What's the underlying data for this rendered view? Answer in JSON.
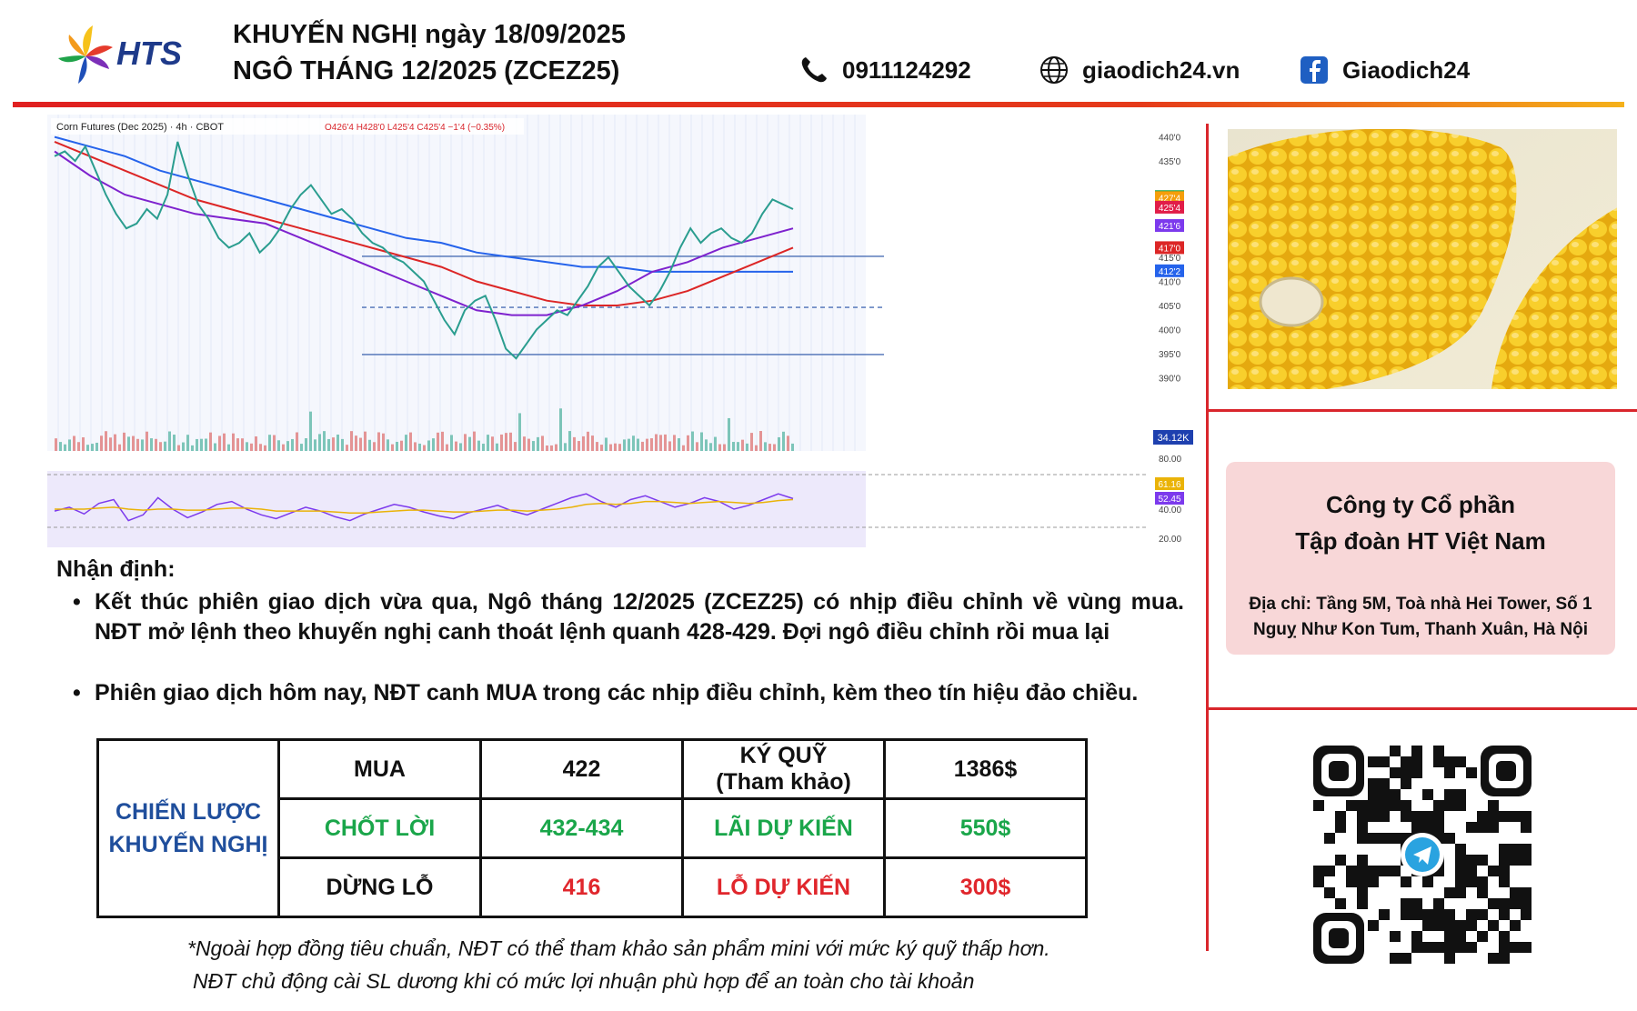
{
  "header": {
    "logo_text": "HTS",
    "title_line1": "KHUYẾN NGHỊ ngày 18/09/2025",
    "title_line2": "NGÔ THÁNG 12/2025 (ZCEZ25)",
    "phone": "0911124292",
    "website": "giaodich24.vn",
    "facebook": "Giaodich24",
    "icons": [
      "phone-icon",
      "globe-icon",
      "facebook-icon"
    ]
  },
  "chart_data": {
    "type": "line",
    "title": "Corn Futures (Dec 2025) · 4h · CBOT",
    "ohlc_label": "O426'4 H428'0 L425'4 C425'4 −1'4 (−0.35%)",
    "y_ticks": [
      "440'0",
      "435'0",
      "415'0",
      "410'0",
      "405'0",
      "400'0",
      "395'0",
      "390'0"
    ],
    "price_labels": [
      {
        "text": "427'6",
        "color": "#16a34a"
      },
      {
        "text": "427'4",
        "color": "#f59e0b"
      },
      {
        "text": "425'4",
        "color": "#e11d48"
      },
      {
        "text": "421'6",
        "color": "#7c3aed"
      },
      {
        "text": "417'0",
        "color": "#dc2626"
      },
      {
        "text": "412'2",
        "color": "#2563eb"
      }
    ],
    "volume_label": "34.12K",
    "rsi_ticks": [
      "80.00",
      "40.00",
      "20.00"
    ],
    "rsi_labels": [
      {
        "text": "61.16",
        "color": "#eab308"
      },
      {
        "text": "52.45",
        "color": "#7c3aed"
      }
    ],
    "ylim": [
      388,
      442
    ],
    "close_series": [
      436,
      437,
      435,
      438,
      433,
      428,
      424,
      421,
      422,
      425,
      423,
      428,
      439,
      432,
      426,
      423,
      419,
      417,
      418,
      420,
      416,
      418,
      421,
      425,
      428,
      430,
      427,
      424,
      425,
      423,
      420,
      418,
      417,
      415,
      414,
      412,
      410,
      406,
      402,
      399,
      404,
      406,
      407,
      402,
      396,
      394,
      397,
      400,
      402,
      404,
      403,
      406,
      409,
      413,
      415,
      412,
      409,
      407,
      405,
      408,
      412,
      417,
      421,
      418,
      420,
      421,
      419,
      418,
      420,
      424,
      427,
      426,
      425
    ],
    "ma_series": [
      {
        "color": "#2563eb",
        "values": [
          440,
          438,
          436,
          433,
          431,
          429,
          427,
          425,
          423,
          421,
          419,
          418,
          416,
          415,
          414,
          413,
          413,
          412,
          412,
          412,
          412,
          412
        ]
      },
      {
        "color": "#dc2626",
        "values": [
          439,
          436,
          433,
          430,
          427,
          425,
          423,
          421,
          419,
          417,
          415,
          413,
          410,
          408,
          406,
          405,
          405,
          406,
          408,
          411,
          414,
          417
        ]
      },
      {
        "color": "#7e22ce",
        "values": [
          437,
          432,
          428,
          426,
          424,
          423,
          422,
          419,
          416,
          413,
          410,
          407,
          404,
          403,
          403,
          405,
          408,
          412,
          414,
          417,
          419,
          421
        ]
      }
    ],
    "hlines": [
      {
        "value": 415.2,
        "style": "solid"
      },
      {
        "value": 404.6,
        "style": "dashed"
      },
      {
        "value": 394.8,
        "style": "solid"
      }
    ],
    "rsi_values": [
      48,
      52,
      45,
      56,
      60,
      38,
      44,
      62,
      50,
      41,
      47,
      55,
      58,
      50,
      44,
      40,
      46,
      52,
      48,
      42,
      38,
      45,
      50,
      55,
      52,
      47,
      43,
      40,
      46,
      50,
      54,
      48,
      44,
      50,
      56,
      62,
      66,
      58,
      52,
      60,
      64,
      58,
      52,
      56,
      62,
      58,
      50,
      54,
      60,
      66,
      61
    ],
    "rsi_avg": [
      50,
      50,
      50,
      51,
      52,
      50,
      49,
      50,
      50,
      49,
      49,
      50,
      51,
      51,
      50,
      48,
      48,
      48,
      48,
      47,
      46,
      46,
      47,
      48,
      49,
      49,
      48,
      47,
      47,
      48,
      49,
      49,
      48,
      49,
      50,
      52,
      55,
      56,
      55,
      56,
      58,
      58,
      57,
      56,
      57,
      58,
      57,
      56,
      57,
      59,
      60
    ]
  },
  "right": {
    "company_line1": "Công ty Cổ phần",
    "company_line2": "Tập đoàn HT Việt Nam",
    "address_line1": "Địa chỉ: Tầng 5M, Toà nhà Hei Tower, Số 1",
    "address_line2": "Nguỵ Như Kon Tum, Thanh Xuân, Hà Nội"
  },
  "analysis": {
    "heading": "Nhận định:",
    "bullets": [
      "Kết thúc phiên giao dịch vừa qua, Ngô tháng 12/2025 (ZCEZ25) có nhịp điều chỉnh về vùng mua. NĐT mở lệnh theo khuyến nghị canh thoát lệnh quanh 428-429. Đợi ngô điều chỉnh rồi mua lại",
      "Phiên giao dịch hôm nay, NĐT canh MUA trong các nhịp điều chỉnh, kèm theo tín hiệu đảo chiều."
    ]
  },
  "table": {
    "strategy_line1": "CHIẾN LƯỢC",
    "strategy_line2": "KHUYẾN NGHỊ",
    "row1": {
      "c1": "MUA",
      "c2": "422",
      "c3_line1": "KÝ QUỸ",
      "c3_line2": "(Tham khảo)",
      "c4": "1386$"
    },
    "row2": {
      "c1": "CHỐT LỜI",
      "c2": "432-434",
      "c3": "LÃI DỰ KIẾN",
      "c4": "550$"
    },
    "row3": {
      "c1": "DỪNG LỖ",
      "c2": "416",
      "c3": "LỖ DỰ KIẾN",
      "c4": "300$"
    }
  },
  "notes": {
    "line1": "*Ngoài hợp đồng tiêu chuẩn, NĐT có thể tham khảo sản phẩm mini với mức ký quỹ thấp hơn.",
    "line2": "NĐT chủ động cài SL dương khi có mức lợi nhuận phù hợp để an toàn cho tài khoản"
  }
}
